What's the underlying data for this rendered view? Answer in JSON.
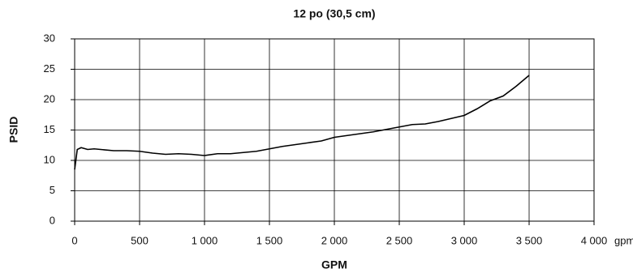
{
  "chart_data": {
    "type": "line",
    "title": "12 po (30,5 cm)",
    "x_label": "GPM",
    "y_label": "PSID",
    "x_unit": "gpm",
    "x": [
      0,
      20,
      50,
      100,
      150,
      200,
      300,
      400,
      500,
      600,
      700,
      800,
      900,
      1000,
      1100,
      1200,
      1300,
      1400,
      1500,
      1600,
      1700,
      1800,
      1900,
      2000,
      2100,
      2200,
      2300,
      2400,
      2500,
      2600,
      2700,
      2800,
      2900,
      3000,
      3100,
      3200,
      3300,
      3400,
      3500
    ],
    "series": [
      {
        "name": "PSID",
        "color": "#000000",
        "values": [
          8.5,
          11.8,
          12.1,
          11.8,
          11.9,
          11.8,
          11.6,
          11.6,
          11.5,
          11.2,
          11.0,
          11.1,
          11.0,
          10.8,
          11.1,
          11.1,
          11.3,
          11.5,
          11.9,
          12.3,
          12.6,
          12.9,
          13.2,
          13.8,
          14.1,
          14.4,
          14.7,
          15.1,
          15.5,
          15.9,
          16.0,
          16.4,
          16.9,
          17.4,
          18.5,
          19.8,
          20.6,
          22.2,
          24.0
        ]
      }
    ],
    "xlim": [
      0,
      4000
    ],
    "ylim": [
      0,
      30
    ],
    "xticks": [
      0,
      500,
      {
        "value": 1000,
        "label": "1 000"
      },
      {
        "value": 1500,
        "label": "1 500"
      },
      {
        "value": 2000,
        "label": "2 000"
      },
      {
        "value": 2500,
        "label": "2 500"
      },
      {
        "value": 3000,
        "label": "3 000"
      },
      {
        "value": 3500,
        "label": "3 500"
      },
      {
        "value": 4000,
        "label": "4 000"
      }
    ],
    "yticks": [
      0,
      5,
      10,
      15,
      20,
      25,
      30
    ],
    "grid": true
  }
}
